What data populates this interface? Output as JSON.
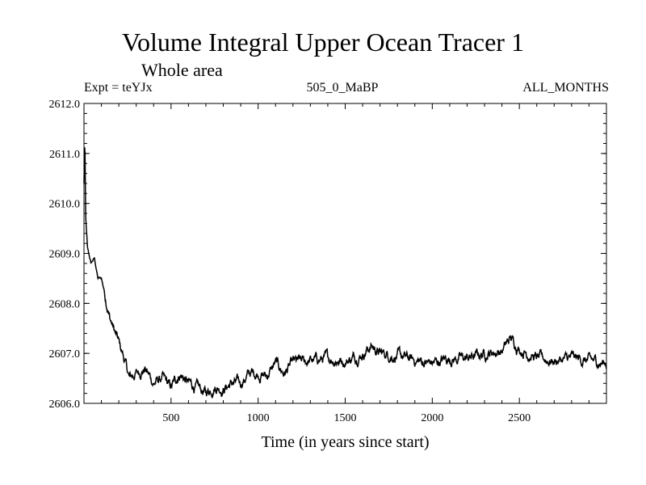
{
  "chart_data": {
    "type": "line",
    "title": "Volume Integral Upper Ocean Tracer 1",
    "subtitle": "Whole area",
    "annotation_left": "Expt = teYJx",
    "annotation_center": "505_0_MaBP",
    "annotation_right": "ALL_MONTHS",
    "xlabel": "Time (in years since start)",
    "ylabel": "",
    "xlim": [
      0,
      3000
    ],
    "ylim": [
      2606.0,
      2612.0
    ],
    "xticks": [
      500,
      1000,
      1500,
      2000,
      2500
    ],
    "xtick_labels": [
      "500",
      "1000",
      "1500",
      "2000",
      "2500"
    ],
    "yticks": [
      2606.0,
      2607.0,
      2608.0,
      2609.0,
      2610.0,
      2611.0,
      2612.0
    ],
    "ytick_labels": [
      "2606.0",
      "2607.0",
      "2608.0",
      "2609.0",
      "2610.0",
      "2611.0",
      "2612.0"
    ],
    "grid": false,
    "series": [
      {
        "name": "Volume Integral Upper Ocean Tracer 1",
        "color": "#000000",
        "x": [
          0,
          5,
          10,
          20,
          40,
          60,
          80,
          100,
          120,
          150,
          180,
          200,
          230,
          260,
          300,
          350,
          400,
          450,
          500,
          550,
          600,
          650,
          700,
          750,
          800,
          850,
          900,
          950,
          1000,
          1050,
          1100,
          1150,
          1200,
          1300,
          1400,
          1500,
          1600,
          1650,
          1700,
          1800,
          1900,
          2000,
          2100,
          2200,
          2300,
          2400,
          2450,
          2500,
          2600,
          2700,
          2800,
          2900,
          3000
        ],
        "y": [
          2610.4,
          2611.3,
          2609.7,
          2609.1,
          2608.8,
          2608.9,
          2608.5,
          2608.5,
          2608.2,
          2607.7,
          2607.4,
          2607.2,
          2606.9,
          2606.5,
          2606.6,
          2606.7,
          2606.4,
          2606.5,
          2606.3,
          2606.6,
          2606.4,
          2606.3,
          2606.2,
          2606.35,
          2606.3,
          2606.4,
          2606.4,
          2606.6,
          2606.6,
          2606.55,
          2606.8,
          2606.6,
          2606.8,
          2606.85,
          2606.9,
          2606.85,
          2607.0,
          2607.15,
          2607.0,
          2606.95,
          2606.85,
          2606.8,
          2606.9,
          2606.9,
          2607.0,
          2607.05,
          2607.3,
          2607.1,
          2606.9,
          2606.85,
          2606.9,
          2606.85,
          2606.8
        ]
      }
    ]
  }
}
